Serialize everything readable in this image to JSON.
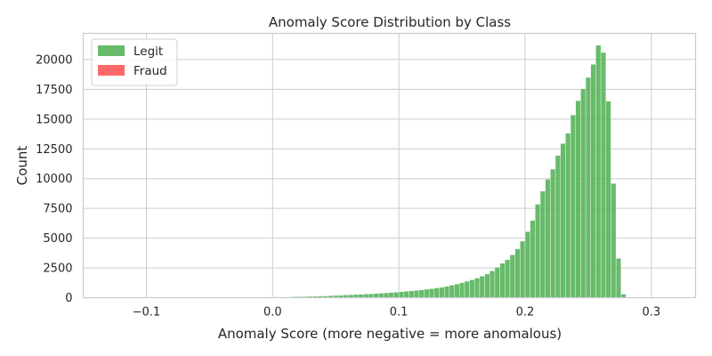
{
  "chart_data": {
    "type": "bar",
    "title": "Anomaly Score Distribution by Class",
    "xlabel": "Anomaly Score (more negative = more anomalous)",
    "ylabel": "Count",
    "xlim": [
      -0.15,
      0.335
    ],
    "ylim": [
      0,
      22200
    ],
    "xticks": [
      -0.1,
      0.0,
      0.1,
      0.2,
      0.3
    ],
    "xtick_labels": [
      "−0.1",
      "0.0",
      "0.1",
      "0.2",
      "0.3"
    ],
    "yticks": [
      0,
      2500,
      5000,
      7500,
      10000,
      12500,
      15000,
      17500,
      20000
    ],
    "ytick_labels": [
      "0",
      "2500",
      "5000",
      "7500",
      "10000",
      "12500",
      "15000",
      "17500",
      "20000"
    ],
    "grid": true,
    "legend_position": "top-left",
    "bin_width": 0.004,
    "series": [
      {
        "name": "Legit",
        "color": "#4caf50",
        "bin_centers": [
          -0.138,
          -0.134,
          -0.13,
          -0.126,
          -0.122,
          -0.118,
          -0.114,
          -0.11,
          -0.106,
          -0.102,
          -0.098,
          -0.094,
          -0.09,
          -0.086,
          -0.082,
          -0.078,
          -0.074,
          -0.07,
          -0.066,
          -0.062,
          -0.058,
          -0.054,
          -0.05,
          -0.046,
          -0.042,
          -0.038,
          -0.034,
          -0.03,
          -0.026,
          -0.022,
          -0.018,
          -0.014,
          -0.01,
          -0.006,
          -0.002,
          0.002,
          0.006,
          0.01,
          0.014,
          0.018,
          0.022,
          0.026,
          0.03,
          0.034,
          0.038,
          0.042,
          0.046,
          0.05,
          0.054,
          0.058,
          0.062,
          0.066,
          0.07,
          0.074,
          0.078,
          0.082,
          0.086,
          0.09,
          0.094,
          0.098,
          0.102,
          0.106,
          0.11,
          0.114,
          0.118,
          0.122,
          0.126,
          0.13,
          0.134,
          0.138,
          0.142,
          0.146,
          0.15,
          0.154,
          0.158,
          0.162,
          0.166,
          0.17,
          0.174,
          0.178,
          0.182,
          0.186,
          0.19,
          0.194,
          0.198,
          0.202,
          0.206,
          0.21,
          0.214,
          0.218,
          0.222,
          0.226,
          0.23,
          0.234,
          0.238,
          0.242,
          0.246,
          0.25,
          0.254,
          0.258,
          0.262,
          0.266,
          0.27,
          0.274,
          0.278,
          0.282,
          0.286,
          0.29,
          0.294,
          0.298,
          0.302,
          0.306,
          0.31
        ],
        "values": [
          3,
          3,
          3,
          4,
          4,
          4,
          5,
          5,
          5,
          6,
          6,
          7,
          7,
          8,
          8,
          9,
          9,
          10,
          11,
          12,
          13,
          14,
          16,
          18,
          20,
          22,
          24,
          26,
          28,
          30,
          32,
          35,
          38,
          41,
          45,
          50,
          55,
          60,
          70,
          80,
          90,
          100,
          110,
          120,
          130,
          150,
          170,
          190,
          210,
          230,
          250,
          270,
          290,
          310,
          330,
          350,
          380,
          410,
          440,
          470,
          500,
          540,
          580,
          620,
          660,
          710,
          760,
          820,
          880,
          960,
          1050,
          1150,
          1260,
          1380,
          1500,
          1650,
          1820,
          2000,
          2250,
          2550,
          2900,
          3200,
          3600,
          4100,
          4750,
          5550,
          6500,
          7850,
          8950,
          9950,
          10800,
          11950,
          12950,
          13800,
          15350,
          16550,
          17550,
          18500,
          19600,
          21200,
          20600,
          16500,
          9600,
          3300,
          300,
          50,
          20,
          10,
          5,
          2,
          1,
          0,
          0
        ]
      },
      {
        "name": "Fraud",
        "color": "#ff4d4d",
        "bin_centers": [],
        "values": []
      }
    ]
  }
}
